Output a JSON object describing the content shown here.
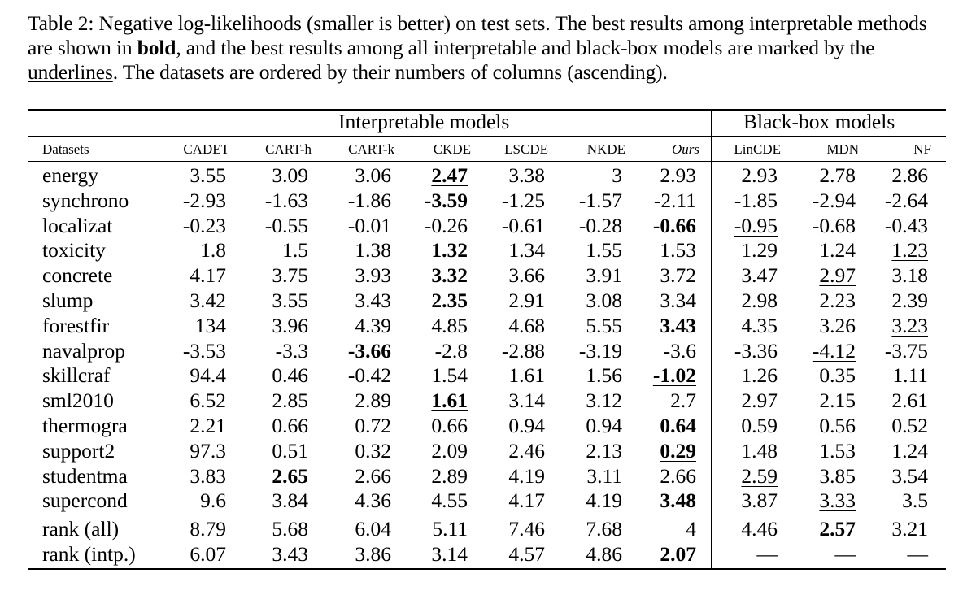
{
  "caption": {
    "part1": "Table 2: Negative log-likelihoods (smaller is better) on test sets. The best results among interpretable methods are shown in ",
    "bold_word": "bold",
    "part2": ", and the best results among all interpretable and black-box models are marked by the ",
    "underline_word": "underlines",
    "part3": ". The datasets are ordered by their numbers of columns (ascending)."
  },
  "groups": {
    "interpretable": "Interpretable models",
    "blackbox": "Black-box models"
  },
  "columns": [
    "Datasets",
    "CADET",
    "CART-h",
    "CART-k",
    "CKDE",
    "LSCDE",
    "NKDE",
    "Ours",
    "LinCDE",
    "MDN",
    "NF"
  ],
  "rows": [
    {
      "name": "energy",
      "values": [
        "3.55",
        "3.09",
        "3.06",
        "2.47",
        "3.38",
        "3",
        "2.93",
        "2.93",
        "2.78",
        "2.86"
      ],
      "bold": [
        3
      ],
      "underline": [
        3
      ]
    },
    {
      "name": "synchrono",
      "values": [
        "-2.93",
        "-1.63",
        "-1.86",
        "-3.59",
        "-1.25",
        "-1.57",
        "-2.11",
        "-1.85",
        "-2.94",
        "-2.64"
      ],
      "bold": [
        3
      ],
      "underline": [
        3
      ]
    },
    {
      "name": "localizat",
      "values": [
        "-0.23",
        "-0.55",
        "-0.01",
        "-0.26",
        "-0.61",
        "-0.28",
        "-0.66",
        "-0.95",
        "-0.68",
        "-0.43"
      ],
      "bold": [
        6
      ],
      "underline": [
        7
      ]
    },
    {
      "name": "toxicity",
      "values": [
        "1.8",
        "1.5",
        "1.38",
        "1.32",
        "1.34",
        "1.55",
        "1.53",
        "1.29",
        "1.24",
        "1.23"
      ],
      "bold": [
        3
      ],
      "underline": [
        9
      ]
    },
    {
      "name": "concrete",
      "values": [
        "4.17",
        "3.75",
        "3.93",
        "3.32",
        "3.66",
        "3.91",
        "3.72",
        "3.47",
        "2.97",
        "3.18"
      ],
      "bold": [
        3
      ],
      "underline": [
        8
      ]
    },
    {
      "name": "slump",
      "values": [
        "3.42",
        "3.55",
        "3.43",
        "2.35",
        "2.91",
        "3.08",
        "3.34",
        "2.98",
        "2.23",
        "2.39"
      ],
      "bold": [
        3
      ],
      "underline": [
        8
      ]
    },
    {
      "name": "forestfir",
      "values": [
        "134",
        "3.96",
        "4.39",
        "4.85",
        "4.68",
        "5.55",
        "3.43",
        "4.35",
        "3.26",
        "3.23"
      ],
      "bold": [
        6
      ],
      "underline": [
        9
      ]
    },
    {
      "name": "navalprop",
      "values": [
        "-3.53",
        "-3.3",
        "-3.66",
        "-2.8",
        "-2.88",
        "-3.19",
        "-3.6",
        "-3.36",
        "-4.12",
        "-3.75"
      ],
      "bold": [
        2
      ],
      "underline": [
        8
      ]
    },
    {
      "name": "skillcraf",
      "values": [
        "94.4",
        "0.46",
        "-0.42",
        "1.54",
        "1.61",
        "1.56",
        "-1.02",
        "1.26",
        "0.35",
        "1.11"
      ],
      "bold": [
        6
      ],
      "underline": [
        6
      ]
    },
    {
      "name": "sml2010",
      "values": [
        "6.52",
        "2.85",
        "2.89",
        "1.61",
        "3.14",
        "3.12",
        "2.7",
        "2.97",
        "2.15",
        "2.61"
      ],
      "bold": [
        3
      ],
      "underline": [
        3
      ]
    },
    {
      "name": "thermogra",
      "values": [
        "2.21",
        "0.66",
        "0.72",
        "0.66",
        "0.94",
        "0.94",
        "0.64",
        "0.59",
        "0.56",
        "0.52"
      ],
      "bold": [
        6
      ],
      "underline": [
        9
      ]
    },
    {
      "name": "support2",
      "values": [
        "97.3",
        "0.51",
        "0.32",
        "2.09",
        "2.46",
        "2.13",
        "0.29",
        "1.48",
        "1.53",
        "1.24"
      ],
      "bold": [
        6
      ],
      "underline": [
        6
      ]
    },
    {
      "name": "studentma",
      "values": [
        "3.83",
        "2.65",
        "2.66",
        "2.89",
        "4.19",
        "3.11",
        "2.66",
        "2.59",
        "3.85",
        "3.54"
      ],
      "bold": [
        1
      ],
      "underline": [
        7
      ]
    },
    {
      "name": "supercond",
      "values": [
        "9.6",
        "3.84",
        "4.36",
        "4.55",
        "4.17",
        "4.19",
        "3.48",
        "3.87",
        "3.33",
        "3.5"
      ],
      "bold": [
        6
      ],
      "underline": [
        8
      ]
    },
    {
      "name": "rank (all)",
      "values": [
        "8.79",
        "5.68",
        "6.04",
        "5.11",
        "7.46",
        "7.68",
        "4",
        "4.46",
        "2.57",
        "3.21"
      ],
      "bold": [
        8
      ],
      "underline": []
    },
    {
      "name": "rank (intp.)",
      "values": [
        "6.07",
        "3.43",
        "3.86",
        "3.14",
        "4.57",
        "4.86",
        "2.07",
        "—",
        "—",
        "—"
      ],
      "bold": [
        6
      ],
      "underline": []
    }
  ]
}
